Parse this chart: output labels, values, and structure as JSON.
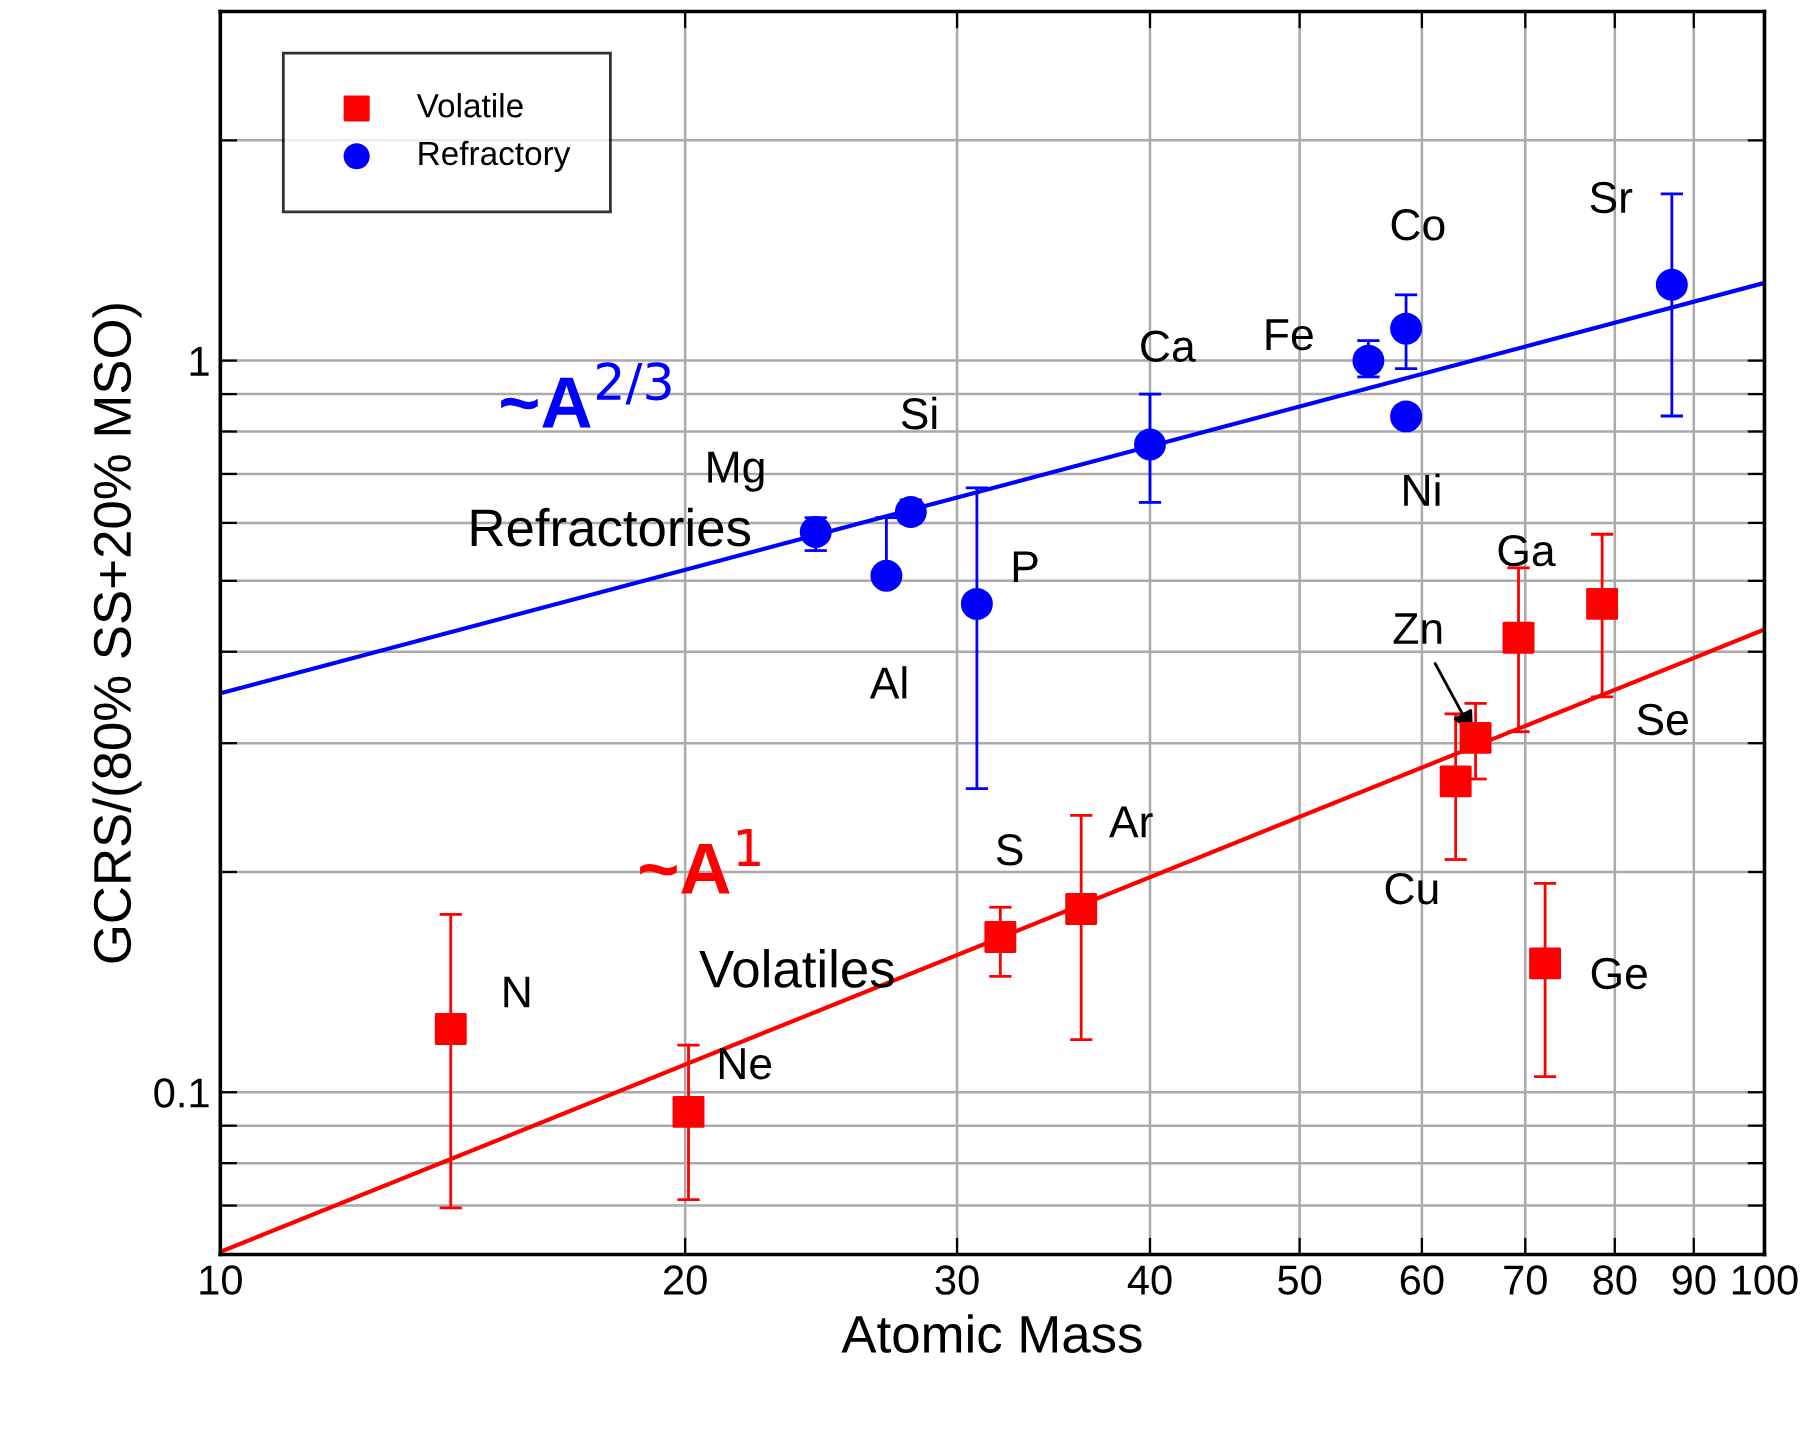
{
  "chart_data": {
    "type": "scatter",
    "xlabel": "Atomic Mass",
    "ylabel": "GCRS/(80% SS+20% MSO)",
    "log": "xy",
    "xlim": [
      10,
      100
    ],
    "ylim": [
      0.06,
      3
    ],
    "xticks": [
      10,
      20,
      30,
      40,
      50,
      60,
      70,
      80,
      90,
      100
    ],
    "yticks": [
      {
        "value": 0.06,
        "label": null
      },
      {
        "value": 0.07,
        "label": null
      },
      {
        "value": 0.08,
        "label": null
      },
      {
        "value": 0.09,
        "label": null
      },
      {
        "value": 0.1,
        "label": "0.1"
      },
      {
        "value": 0.2,
        "label": null
      },
      {
        "value": 0.3,
        "label": null
      },
      {
        "value": 0.4,
        "label": null
      },
      {
        "value": 0.5,
        "label": null
      },
      {
        "value": 0.6,
        "label": null
      },
      {
        "value": 0.7,
        "label": null
      },
      {
        "value": 0.8,
        "label": null
      },
      {
        "value": 0.9,
        "label": null
      },
      {
        "value": 1,
        "label": "1"
      },
      {
        "value": 2,
        "label": null
      },
      {
        "value": 3,
        "label": null
      }
    ],
    "grid": true,
    "legend": "top left",
    "series": [
      {
        "name": "Volatile",
        "marker": "square",
        "color": "#ff0000",
        "x": [
          14.1,
          20.1,
          32.0,
          36.1,
          63.1,
          65.0,
          69.3,
          72.1,
          78.5
        ],
        "values": [
          0.122,
          0.094,
          0.163,
          0.178,
          0.266,
          0.305,
          0.418,
          0.15,
          0.465
        ],
        "errors": [
          [
            0.0695,
            0.175
          ],
          [
            0.0713,
            0.116
          ],
          [
            0.144,
            0.179
          ],
          [
            0.118,
            0.239
          ],
          [
            0.208,
            0.329
          ],
          [
            0.268,
            0.34
          ],
          [
            0.311,
            0.521
          ],
          [
            0.105,
            0.193
          ],
          [
            0.347,
            0.579
          ]
        ]
      },
      {
        "name": "Refractory",
        "marker": "circle",
        "color": "#0000ff",
        "x": [
          24.3,
          27.0,
          28.0,
          30.9,
          40.0,
          55.4,
          58.6,
          58.6,
          87.1
        ],
        "values": [
          0.583,
          0.508,
          0.621,
          0.465,
          0.768,
          1.0,
          1.106,
          0.839,
          1.27
        ],
        "errors": [
          [
            0.55,
            0.61
          ],
          [
            0.508,
            0.61
          ],
          [
            0.6,
            0.645
          ],
          [
            0.26,
            0.67
          ],
          [
            0.64,
            0.9
          ],
          [
            0.95,
            1.065
          ],
          [
            0.975,
            1.23
          ],
          null,
          [
            0.84,
            1.69
          ]
        ]
      },
      {
        "name": "~A$^{1}$",
        "type": "line",
        "color": "#ff0000",
        "x": [
          10,
          100
        ],
        "values": [
          0.0605,
          0.429
        ]
      },
      {
        "name": "~A$^{2/3}$",
        "type": "line",
        "color": "#0000ff",
        "x": [
          10,
          100
        ],
        "values": [
          0.351,
          1.277
        ]
      }
    ],
    "annotations": [
      {
        "text": "N",
        "x": 14.1,
        "y": 0.122
      },
      {
        "text": "Ne",
        "x": 20.1,
        "y": 0.094
      },
      {
        "text": "S",
        "x": 32.0,
        "y": 0.163
      },
      {
        "text": "Ar",
        "x": 36.1,
        "y": 0.178
      },
      {
        "text": "Cu",
        "x": 63.1,
        "y": 0.266
      },
      {
        "text": "Zn",
        "x": 65.0,
        "y": 0.305
      },
      {
        "text": "Ga",
        "x": 69.3,
        "y": 0.418
      },
      {
        "text": "Ge",
        "x": 72.1,
        "y": 0.15
      },
      {
        "text": "Se",
        "x": 78.5,
        "y": 0.465
      },
      {
        "text": "Mg",
        "x": 24.3,
        "y": 0.583
      },
      {
        "text": "Al",
        "x": 27.0,
        "y": 0.508
      },
      {
        "text": "Si",
        "x": 28.0,
        "y": 0.621
      },
      {
        "text": "P",
        "x": 30.9,
        "y": 0.465
      },
      {
        "text": "Ca",
        "x": 40.0,
        "y": 0.768
      },
      {
        "text": "Fe",
        "x": 55.4,
        "y": 1.0
      },
      {
        "text": "Co",
        "x": 58.6,
        "y": 1.106
      },
      {
        "text": "Ni",
        "x": 58.6,
        "y": 0.839
      },
      {
        "text": "Sr",
        "x": 87.1,
        "y": 1.27
      },
      "Refractories",
      "Volatiles"
    ]
  }
}
